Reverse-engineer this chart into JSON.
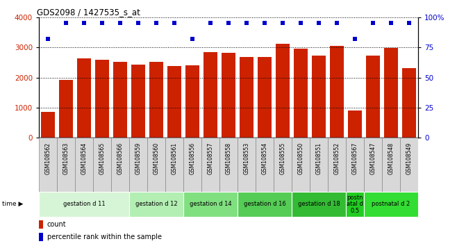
{
  "title": "GDS2098 / 1427535_s_at",
  "samples": [
    "GSM108562",
    "GSM108563",
    "GSM108564",
    "GSM108565",
    "GSM108566",
    "GSM108559",
    "GSM108560",
    "GSM108561",
    "GSM108556",
    "GSM108557",
    "GSM108558",
    "GSM108553",
    "GSM108554",
    "GSM108555",
    "GSM108550",
    "GSM108551",
    "GSM108552",
    "GSM108567",
    "GSM108547",
    "GSM108548",
    "GSM108549"
  ],
  "counts": [
    870,
    1930,
    2630,
    2590,
    2510,
    2420,
    2530,
    2370,
    2410,
    2840,
    2830,
    2680,
    2680,
    3130,
    2950,
    2720,
    3060,
    910,
    2720,
    2980,
    2310
  ],
  "percentile_ranks": [
    82,
    95,
    95,
    95,
    95,
    95,
    95,
    95,
    82,
    95,
    95,
    95,
    95,
    95,
    95,
    95,
    95,
    82,
    95,
    95,
    95
  ],
  "groups": [
    {
      "label": "gestation d 11",
      "start": 0,
      "end": 5,
      "color": "#d6f5d6"
    },
    {
      "label": "gestation d 12",
      "start": 5,
      "end": 8,
      "color": "#b3eeb3"
    },
    {
      "label": "gestation d 14",
      "start": 8,
      "end": 11,
      "color": "#80e080"
    },
    {
      "label": "gestation d 16",
      "start": 11,
      "end": 14,
      "color": "#55cc55"
    },
    {
      "label": "gestation d 18",
      "start": 14,
      "end": 17,
      "color": "#33bb33"
    },
    {
      "label": "postn\natal d\n0.5",
      "start": 17,
      "end": 18,
      "color": "#22cc22"
    },
    {
      "label": "postnatal d 2",
      "start": 18,
      "end": 21,
      "color": "#33dd33"
    }
  ],
  "bar_color": "#cc2200",
  "dot_color": "#0000cc",
  "ylim_left": [
    0,
    4000
  ],
  "ylim_right": [
    0,
    100
  ],
  "yticks_left": [
    0,
    1000,
    2000,
    3000,
    4000
  ],
  "yticks_right": [
    0,
    25,
    50,
    75,
    100
  ],
  "sample_bg_color": "#d8d8d8",
  "sample_border_color": "#888888",
  "plot_bg_color": "#ffffff"
}
